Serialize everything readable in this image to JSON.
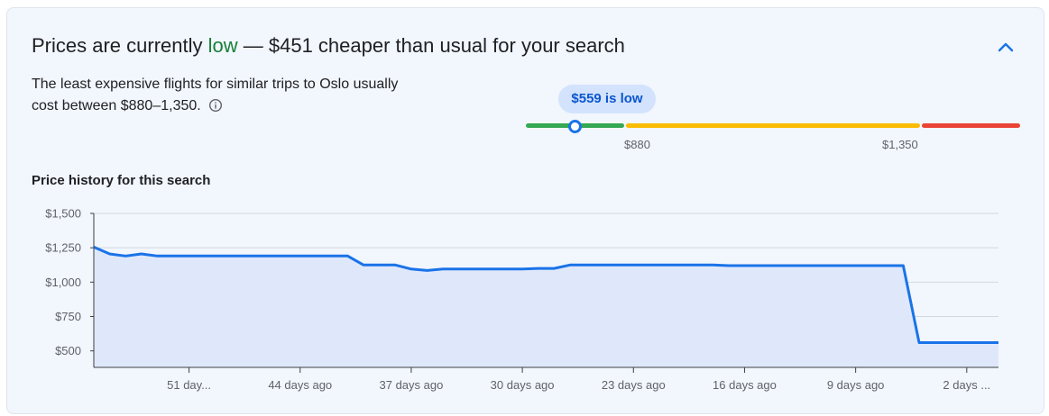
{
  "header": {
    "headline_pre": "Prices are currently ",
    "headline_level": "low",
    "headline_post": " — $451 cheaper than usual for your search"
  },
  "summary": {
    "text": "The least expensive flights for similar trips to Oslo usually cost between $880–1,350."
  },
  "price_range": {
    "current_label": "$559 is low",
    "current_value": 559,
    "low_threshold_label": "$880",
    "high_threshold_label": "$1,350",
    "colors": {
      "low": "#34a853",
      "typical": "#fbbc04",
      "high": "#ea4335",
      "marker": "#1a73e8"
    }
  },
  "history": {
    "title": "Price history for this search"
  },
  "chart_data": {
    "type": "area",
    "x_tick_labels": [
      "51 day...",
      "44 days ago",
      "37 days ago",
      "30 days ago",
      "23 days ago",
      "16 days ago",
      "9 days ago",
      "2 days ..."
    ],
    "y_tick_labels": [
      "$1,500",
      "$1,250",
      "$1,000",
      "$750",
      "$500"
    ],
    "y_ticks": [
      1500,
      1250,
      1000,
      750,
      500
    ],
    "ylim": [
      380,
      1500
    ],
    "xlim": [
      -57,
      0
    ],
    "days_ago_ticks": [
      -51,
      -44,
      -37,
      -30,
      -23,
      -16,
      -9,
      -2
    ],
    "series": [
      {
        "x": [
          -57,
          -56,
          -55,
          -54,
          -53,
          -52,
          -51,
          -50,
          -49,
          -48,
          -47,
          -46,
          -45,
          -44,
          -43,
          -42,
          -41,
          -40,
          -39,
          -38,
          -37,
          -36,
          -35,
          -34,
          -33,
          -32,
          -31,
          -30,
          -29,
          -28,
          -27,
          -26,
          -25,
          -24,
          -23,
          -22,
          -21,
          -20,
          -19,
          -18,
          -17,
          -16,
          -15,
          -14,
          -13,
          -12,
          -11,
          -10,
          -9,
          -8,
          -7,
          -6,
          -5,
          -4,
          -3,
          -2,
          -1,
          0
        ],
        "values": [
          1255,
          1205,
          1190,
          1205,
          1190,
          1190,
          1190,
          1190,
          1190,
          1190,
          1190,
          1190,
          1190,
          1190,
          1190,
          1190,
          1190,
          1125,
          1125,
          1125,
          1095,
          1085,
          1095,
          1095,
          1095,
          1095,
          1095,
          1095,
          1100,
          1100,
          1125,
          1125,
          1125,
          1125,
          1125,
          1125,
          1125,
          1125,
          1125,
          1125,
          1120,
          1120,
          1120,
          1120,
          1120,
          1120,
          1120,
          1120,
          1120,
          1120,
          1120,
          1120,
          560,
          560,
          560,
          560,
          560,
          560
        ]
      }
    ],
    "grid": true,
    "colors": {
      "line": "#1a73e8",
      "fill": "#dfe8fb",
      "grid": "#d3d8e0",
      "axis": "#3c4043"
    }
  }
}
